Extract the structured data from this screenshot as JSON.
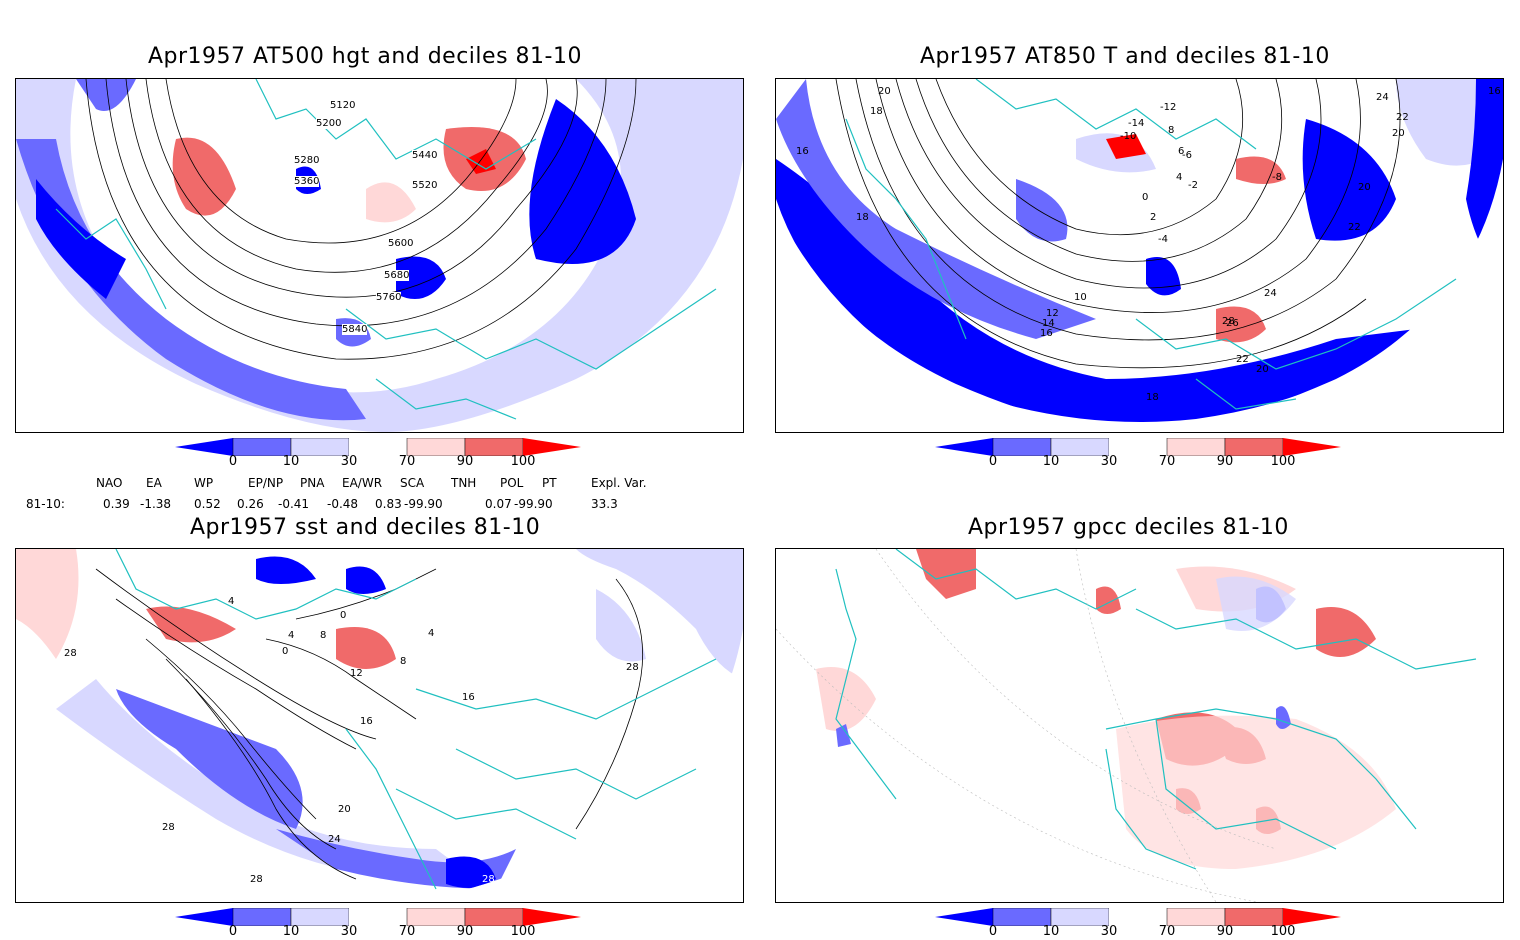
{
  "panels": {
    "hgt": {
      "title": "Apr1957 AT500 hgt and deciles 81-10",
      "contour_labels": [
        "5120",
        "5200",
        "5280",
        "5360",
        "5440",
        "5520",
        "5600",
        "5680",
        "5760",
        "5840"
      ]
    },
    "t850": {
      "title": "Apr1957 AT850 T and deciles 81-10",
      "contour_labels": [
        "20",
        "18",
        "16",
        "-12",
        "-14",
        "-10",
        "8",
        "6",
        "4",
        "2",
        "0",
        "-2",
        "-4",
        "-6",
        "-8",
        "10",
        "12",
        "14",
        "16",
        "18",
        "20",
        "22",
        "24",
        "26",
        "28",
        "22",
        "20",
        "24",
        "22",
        "20",
        "18",
        "16"
      ]
    },
    "sst": {
      "title": "Apr1957 sst and deciles 81-10",
      "contour_labels": [
        "28",
        "4",
        "0",
        "4",
        "8",
        "0",
        "12",
        "8",
        "16",
        "16",
        "20",
        "24",
        "28",
        "28",
        "28",
        "28",
        "4"
      ]
    },
    "gpcc": {
      "title": "Apr1957 gpcc deciles 81-10"
    }
  },
  "colorbar": {
    "labels": [
      "0",
      "10",
      "30",
      "70",
      "90",
      "100"
    ],
    "colors": [
      "#0000ff",
      "#6a6aff",
      "#d8d8ff",
      "#ffffff",
      "#ffd8d8",
      "#f06a6a",
      "#ff0000"
    ]
  },
  "indices": {
    "headers": [
      "NAO",
      "EA",
      "WP",
      "EP/NP",
      "PNA",
      "EA/WR",
      "SCA",
      "TNH",
      "POL",
      "PT",
      "Expl. Var."
    ],
    "row_label": "81-10:",
    "values": [
      "0.39",
      "-1.38",
      "0.52",
      "0.26",
      "-0.41",
      "-0.48",
      "0.83",
      "-99.90",
      "0.07",
      "-99.90",
      "33.3"
    ]
  }
}
